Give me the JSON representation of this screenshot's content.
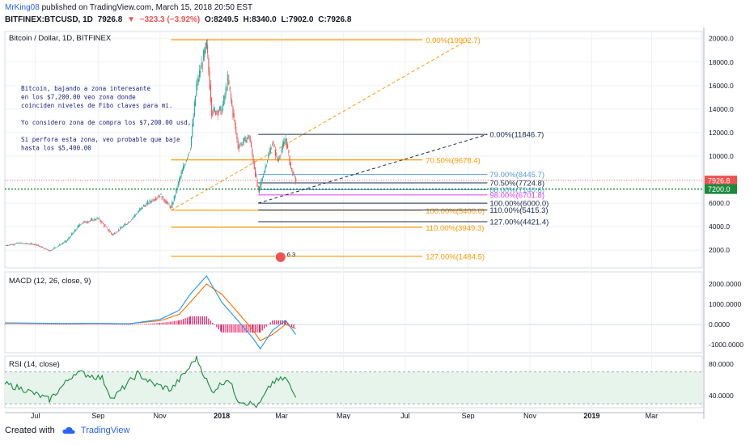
{
  "header": {
    "user": "MrKing08",
    "published": "published on TradingView.com, March 15, 2018 20:50 EST",
    "symbol": "BITFINEX:BTCUSD, 1D",
    "last": "7926.8",
    "change_arrow": "▼",
    "change": "−323.3 (−3.92%)",
    "open": "O:8249.5",
    "high": "H:8340.0",
    "low": "L:7902.0",
    "close": "C:7926.8"
  },
  "footer": {
    "created_with": "Created with",
    "brand": "TradingView"
  },
  "colors": {
    "candle_up": "#26a69a",
    "candle_down": "#ef5350",
    "fib_orange": "#ff9800",
    "fib_blue": "#5b9bd5",
    "fib_pink": "#e040fb",
    "fib_navy": "#1a2b4c",
    "macd_line": "#2196f3",
    "signal_line": "#ff6d00",
    "hist": "#e91e63",
    "rsi_line": "#1b8a3c",
    "price_tag": "#ef5350",
    "support_tag": "#1b8a3c"
  },
  "chart_data": [
    {
      "type": "candlestick",
      "title": "Bitcoin / Dollar, 1D, BITFINEX",
      "y_axis_ticks": [
        "20000.0",
        "18000.0",
        "16000.0",
        "14000.0",
        "12000.0",
        "10000.0",
        "8000.0",
        "6000.0",
        "4000.0",
        "2000.0"
      ],
      "ylim": [
        500,
        20600
      ],
      "x_ticks": [
        "Jul",
        "Sep",
        "Nov",
        "2018",
        "Mar",
        "May",
        "Jul",
        "Sep",
        "Nov",
        "2019",
        "Mar"
      ],
      "last_price_label": "7926.8",
      "support_label": "7200.0",
      "price_path": [
        [
          "2017-06-01",
          2400
        ],
        [
          "2017-06-15",
          2600
        ],
        [
          "2017-07-01",
          2500
        ],
        [
          "2017-07-15",
          1950
        ],
        [
          "2017-08-01",
          2800
        ],
        [
          "2017-08-15",
          4300
        ],
        [
          "2017-09-01",
          4700
        ],
        [
          "2017-09-15",
          3300
        ],
        [
          "2017-10-01",
          4400
        ],
        [
          "2017-10-15",
          5700
        ],
        [
          "2017-11-01",
          6700
        ],
        [
          "2017-11-12",
          5600
        ],
        [
          "2017-11-20",
          8000
        ],
        [
          "2017-12-01",
          10800
        ],
        [
          "2017-12-07",
          16000
        ],
        [
          "2017-12-17",
          19500
        ],
        [
          "2017-12-22",
          13800
        ],
        [
          "2018-01-01",
          13900
        ],
        [
          "2018-01-07",
          16500
        ],
        [
          "2018-01-17",
          10800
        ],
        [
          "2018-01-28",
          11700
        ],
        [
          "2018-02-06",
          6900
        ],
        [
          "2018-02-14",
          9500
        ],
        [
          "2018-02-20",
          11200
        ],
        [
          "2018-02-25",
          9600
        ],
        [
          "2018-03-05",
          11500
        ],
        [
          "2018-03-10",
          9000
        ],
        [
          "2018-03-15",
          7926.8
        ]
      ],
      "annotation": [
        "Bitcoin, bajando a zona interesante",
        "en los $7,200.00 veo zona donde",
        "coinciden niveles de Fibo claves para mi.",
        "",
        "Yo considero zona de compra los $7,200.00 usd,",
        "",
        "Si perfora esta zona, veo probable que baje",
        "hasta los $5,400.00"
      ],
      "fib_large": [
        {
          "label": "0.00%(19902.7)",
          "price": 19902.7
        },
        {
          "label": "70.50%(9678.4)",
          "price": 9678.4
        },
        {
          "label": "100.00%(5400.0)",
          "price": 5400.0
        },
        {
          "label": "110.00%(3949.3)",
          "price": 3949.3
        },
        {
          "label": "127.00%(1484.5)",
          "price": 1484.5
        }
      ],
      "fib_small": [
        {
          "label": "0.00%(11846.7)",
          "price": 11846.7,
          "color": "navy"
        },
        {
          "label": "79.00%(8445.7)",
          "price": 8445.7,
          "color": "blue"
        },
        {
          "label": "70.50%(7724.8)",
          "price": 7724.8,
          "color": "navy"
        },
        {
          "label": "88.00%(7140.6)",
          "price": 7140.6,
          "color": "blue"
        },
        {
          "label": "98.00%(6701.8)",
          "price": 6701.8,
          "color": "pink"
        },
        {
          "label": "100.00%(6000.0)",
          "price": 6000.0,
          "color": "navy"
        },
        {
          "label": "110.00%(5415.3)",
          "price": 5415.3,
          "color": "navy"
        },
        {
          "label": "127.00%(4421.4)",
          "price": 4421.4,
          "color": "navy"
        }
      ],
      "event_badge": "6 3"
    },
    {
      "type": "line",
      "title": "MACD (12, 26, close, 9)",
      "y_axis_ticks": [
        "2000.0000",
        "1000.0000",
        "0.0000",
        "-1000.0000"
      ],
      "ylim": [
        -1400,
        2600
      ],
      "series": [
        {
          "name": "MACD",
          "values": [
            [
              "2017-06-01",
              80
            ],
            [
              "2017-08-01",
              50
            ],
            [
              "2017-09-01",
              60
            ],
            [
              "2017-10-01",
              30
            ],
            [
              "2017-11-01",
              250
            ],
            [
              "2017-11-20",
              700
            ],
            [
              "2017-12-01",
              1500
            ],
            [
              "2017-12-17",
              2400
            ],
            [
              "2018-01-01",
              1100
            ],
            [
              "2018-01-15",
              300
            ],
            [
              "2018-02-01",
              -700
            ],
            [
              "2018-02-08",
              -1200
            ],
            [
              "2018-02-20",
              -300
            ],
            [
              "2018-03-05",
              200
            ],
            [
              "2018-03-15",
              -500
            ]
          ]
        },
        {
          "name": "Signal",
          "values": [
            [
              "2017-06-01",
              70
            ],
            [
              "2017-08-01",
              40
            ],
            [
              "2017-09-01",
              55
            ],
            [
              "2017-10-01",
              40
            ],
            [
              "2017-11-01",
              180
            ],
            [
              "2017-11-20",
              500
            ],
            [
              "2017-12-01",
              1100
            ],
            [
              "2017-12-17",
              2000
            ],
            [
              "2018-01-01",
              1500
            ],
            [
              "2018-01-15",
              700
            ],
            [
              "2018-02-01",
              -300
            ],
            [
              "2018-02-08",
              -800
            ],
            [
              "2018-02-20",
              -500
            ],
            [
              "2018-03-05",
              0
            ],
            [
              "2018-03-15",
              -200
            ]
          ]
        }
      ]
    },
    {
      "type": "line",
      "title": "RSI (14, close)",
      "y_axis_ticks": [
        "80.0000",
        "40.0000"
      ],
      "ylim": [
        25,
        90
      ],
      "band": [
        30,
        70
      ],
      "series": [
        {
          "name": "RSI",
          "values": [
            [
              "2017-06-01",
              55
            ],
            [
              "2017-06-20",
              48
            ],
            [
              "2017-07-15",
              35
            ],
            [
              "2017-08-10",
              70
            ],
            [
              "2017-09-05",
              62
            ],
            [
              "2017-09-15",
              36
            ],
            [
              "2017-10-10",
              68
            ],
            [
              "2017-10-25",
              55
            ],
            [
              "2017-11-12",
              48
            ],
            [
              "2017-11-28",
              72
            ],
            [
              "2017-12-07",
              88
            ],
            [
              "2017-12-22",
              45
            ],
            [
              "2018-01-07",
              62
            ],
            [
              "2018-01-17",
              35
            ],
            [
              "2018-02-06",
              27
            ],
            [
              "2018-02-20",
              57
            ],
            [
              "2018-03-05",
              62
            ],
            [
              "2018-03-15",
              38
            ]
          ]
        }
      ]
    }
  ]
}
